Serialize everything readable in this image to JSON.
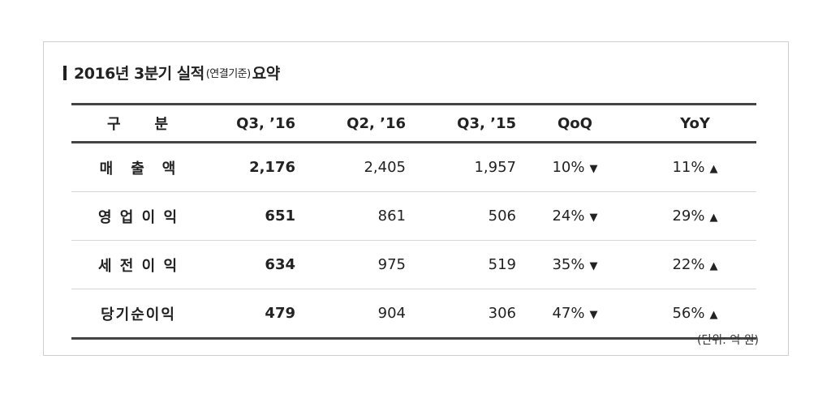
{
  "title": {
    "main": "2016년 3분기 실적",
    "sub": "(연결기준)",
    "suffix": "요약"
  },
  "table": {
    "headers": [
      "구　　분",
      "Q3, ’16",
      "Q2, ’16",
      "Q3, ’15",
      "QoQ",
      "YoY"
    ],
    "rows": [
      {
        "label": "매　출　액",
        "q3_16": "2,176",
        "q2_16": "2,405",
        "q3_15": "1,957",
        "qoq": "10%",
        "qoq_dir": "▼",
        "yoy": "11%",
        "yoy_dir": "▲"
      },
      {
        "label": "영 업 이 익",
        "q3_16": "651",
        "q2_16": "861",
        "q3_15": "506",
        "qoq": "24%",
        "qoq_dir": "▼",
        "yoy": "29%",
        "yoy_dir": "▲"
      },
      {
        "label": "세 전 이 익",
        "q3_16": "634",
        "q2_16": "975",
        "q3_15": "519",
        "qoq": "35%",
        "qoq_dir": "▼",
        "yoy": "22%",
        "yoy_dir": "▲"
      },
      {
        "label": "당기순이익",
        "q3_16": "479",
        "q2_16": "904",
        "q3_15": "306",
        "qoq": "47%",
        "qoq_dir": "▼",
        "yoy": "56%",
        "yoy_dir": "▲"
      }
    ]
  },
  "unit_note": "(단위: 억 원)"
}
